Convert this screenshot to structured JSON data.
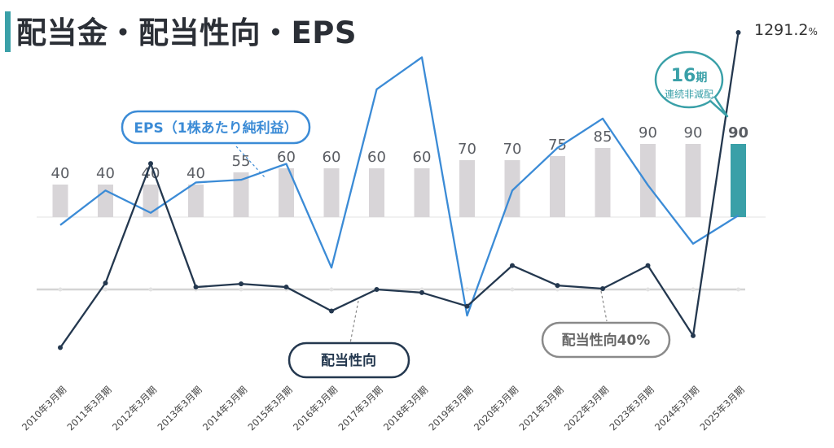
{
  "title": "配当金・配当性向・EPS",
  "colors": {
    "bar": "#d8d5d8",
    "bar_highlight": "#3aa0a8",
    "eps_line": "#3b8bd6",
    "payout_line": "#24384f",
    "payout40_line": "#d4d4d4",
    "accent": "#3aa0a8"
  },
  "annotations": {
    "eps_label": "EPS（1株あたり純利益）",
    "payout_label": "配当性向",
    "payout40_label": "配当性向40%",
    "streak_number": "16",
    "streak_unit": "期",
    "streak_text": "連続非減配",
    "last_payout_value": "1291.2",
    "last_payout_unit": "%"
  },
  "chart_data": {
    "type": "bar",
    "categories": [
      "2010年3月期",
      "2011年3月期",
      "2012年3月期",
      "2013年3月期",
      "2014年3月期",
      "2015年3月期",
      "2016年3月期",
      "2017年3月期",
      "2018年3月期",
      "2019年3月期",
      "2020年3月期",
      "2021年3月期",
      "2022年3月期",
      "2023年3月期",
      "2024年3月期",
      "2025年3月期"
    ],
    "series": [
      {
        "name": "",
        "kind": "bar",
        "values": [
          40,
          40,
          40,
          40,
          55,
          60,
          60,
          60,
          60,
          70,
          70,
          75,
          85,
          90,
          90,
          90
        ],
        "labels": [
          "40",
          "40",
          "40",
          "40",
          "55",
          "60",
          "60",
          "60",
          "60",
          "70",
          "70",
          "75",
          "85",
          "90",
          "90",
          "90"
        ]
      },
      {
        "name": "EPS（1株あたり純利益）",
        "kind": "line",
        "values": [
          -15,
          50,
          8,
          65,
          70,
          100,
          -95,
          240,
          300,
          -185,
          50,
          130,
          185,
          60,
          -50,
          3
        ]
      },
      {
        "name": "配当性向",
        "kind": "line",
        "values": [
          -73,
          8,
          158,
          3,
          7,
          3,
          -27,
          0,
          -4,
          -21,
          30,
          5,
          1,
          30,
          -58,
          1291.2
        ]
      }
    ],
    "reference_line": {
      "name": "配当性向40%"
    },
    "grid": false,
    "legend": "none"
  }
}
